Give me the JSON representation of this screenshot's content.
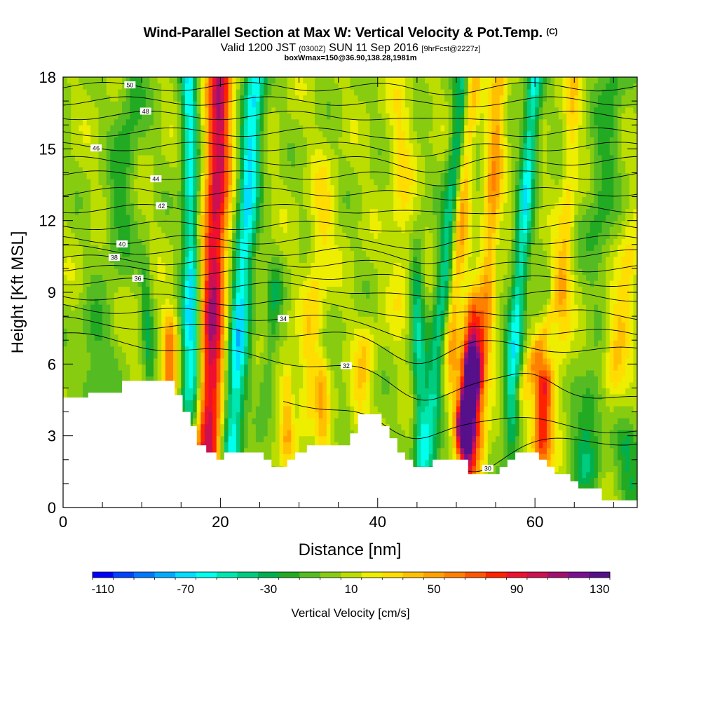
{
  "title": {
    "main": "Wind-Parallel Section at Max W: Vertical Velocity & Pot.Temp.",
    "copyright": "(C)",
    "valid_prefix": "Valid 1200 JST",
    "valid_utc": "(0300Z)",
    "valid_date": "SUN 11 Sep 2016",
    "forecast": "[9hrFcst@2227z]",
    "box_info": "boxWmax=150@36.90,138.28,1981m"
  },
  "colorbar": {
    "label": "Vertical Velocity [cm/s]",
    "tick_labels": [
      "-110",
      "-70",
      "-30",
      "10",
      "50",
      "90",
      "130"
    ],
    "colors": [
      "#0000ff",
      "#0044ff",
      "#0077ff",
      "#00aaff",
      "#00ddff",
      "#00ffee",
      "#00e6b0",
      "#00cc80",
      "#00b050",
      "#22aa22",
      "#55bb22",
      "#88cc11",
      "#bbdd00",
      "#eeee00",
      "#ffdd00",
      "#ffc000",
      "#ffa000",
      "#ff8000",
      "#ff5500",
      "#ff2200",
      "#ee1030",
      "#cc1050",
      "#a01070",
      "#7a1090",
      "#55108a"
    ]
  },
  "chart_data": {
    "type": "heatmap",
    "xlabel": "Distance [nm]",
    "ylabel": "Height [Kft MSL]",
    "xlim": [
      0,
      73
    ],
    "ylim": [
      0,
      18
    ],
    "x_ticks": [
      0,
      20,
      40,
      60
    ],
    "y_ticks": [
      0,
      3,
      6,
      9,
      12,
      15,
      18
    ],
    "vmin": -120,
    "vmax": 140,
    "fill_variable": "Vertical Velocity [cm/s]",
    "contour_variable": "Potential Temperature (C)",
    "background_w": 5,
    "terrain_kft": [
      [
        0,
        4.6
      ],
      [
        3.2,
        4.6
      ],
      [
        3.2,
        4.8
      ],
      [
        7.5,
        4.8
      ],
      [
        7.5,
        5.3
      ],
      [
        14.2,
        5.3
      ],
      [
        14.2,
        4.7
      ],
      [
        15.2,
        4.7
      ],
      [
        15.2,
        4.0
      ],
      [
        16.2,
        4.0
      ],
      [
        16.2,
        3.4
      ],
      [
        17.0,
        3.4
      ],
      [
        17.0,
        2.6
      ],
      [
        18.2,
        2.6
      ],
      [
        18.2,
        2.3
      ],
      [
        19.5,
        2.3
      ],
      [
        19.5,
        2.0
      ],
      [
        20.5,
        2.0
      ],
      [
        20.5,
        2.3
      ],
      [
        25.5,
        2.3
      ],
      [
        25.5,
        2.0
      ],
      [
        26.5,
        2.0
      ],
      [
        26.5,
        1.7
      ],
      [
        28.5,
        1.7
      ],
      [
        28.5,
        2.0
      ],
      [
        29.5,
        2.0
      ],
      [
        29.5,
        2.3
      ],
      [
        31.0,
        2.3
      ],
      [
        31.0,
        2.6
      ],
      [
        36.5,
        2.6
      ],
      [
        36.5,
        3.1
      ],
      [
        37.5,
        3.1
      ],
      [
        37.5,
        3.9
      ],
      [
        40.5,
        3.9
      ],
      [
        40.5,
        3.4
      ],
      [
        41.5,
        3.4
      ],
      [
        41.5,
        2.9
      ],
      [
        42.5,
        2.9
      ],
      [
        42.5,
        2.3
      ],
      [
        43.5,
        2.3
      ],
      [
        43.5,
        2.0
      ],
      [
        44.5,
        2.0
      ],
      [
        44.5,
        1.7
      ],
      [
        47.0,
        1.7
      ],
      [
        47.0,
        2.0
      ],
      [
        51.5,
        2.0
      ],
      [
        51.5,
        1.4
      ],
      [
        55.5,
        1.4
      ],
      [
        55.5,
        1.7
      ],
      [
        56.5,
        1.7
      ],
      [
        56.5,
        2.0
      ],
      [
        57.5,
        2.0
      ],
      [
        57.5,
        2.3
      ],
      [
        60.5,
        2.3
      ],
      [
        60.5,
        2.0
      ],
      [
        61.5,
        2.0
      ],
      [
        61.5,
        1.7
      ],
      [
        62.5,
        1.7
      ],
      [
        62.5,
        1.4
      ],
      [
        64.5,
        1.4
      ],
      [
        64.5,
        1.1
      ],
      [
        65.5,
        1.1
      ],
      [
        65.5,
        0.8
      ],
      [
        68.5,
        0.8
      ],
      [
        68.5,
        0.3
      ],
      [
        73,
        0.3
      ]
    ],
    "w_features": [
      {
        "x0": 18.5,
        "x1": 20.0,
        "y0": 2.5,
        "y1": 18,
        "w": 100,
        "rx": 1.6,
        "ry": 2.8
      },
      {
        "x0": 21.5,
        "x1": 24.5,
        "y0": 3,
        "y1": 18,
        "w": -75,
        "rx": 1.3,
        "ry": 3.0
      },
      {
        "x0": 16.5,
        "x1": 16.0,
        "y0": 6,
        "y1": 18,
        "w": -70,
        "rx": 1.0,
        "ry": 3.0
      },
      {
        "x0": 13.5,
        "x1": 13.5,
        "y0": 5.2,
        "y1": 7.0,
        "w": 55,
        "rx": 1.0,
        "ry": 1.2
      },
      {
        "x0": 15.5,
        "x1": 15.5,
        "y0": 4.8,
        "y1": 7.5,
        "w": -30,
        "rx": 0.8,
        "ry": 1.5
      },
      {
        "x0": 51.0,
        "x1": 52.0,
        "y0": 3.6,
        "y1": 5.5,
        "w": 145,
        "rx": 1.1,
        "ry": 1.3
      },
      {
        "x0": 51.5,
        "x1": 52.0,
        "y0": 2.0,
        "y1": 7.5,
        "w": 70,
        "rx": 1.1,
        "ry": 1.6
      },
      {
        "x0": 49.5,
        "x1": 52.0,
        "y0": 7.5,
        "y1": 18,
        "w": 45,
        "rx": 1.0,
        "ry": 3.0
      },
      {
        "x0": 46.5,
        "x1": 51.0,
        "y0": 3,
        "y1": 18,
        "w": -50,
        "rx": 1.1,
        "ry": 3.2
      },
      {
        "x0": 53.0,
        "x1": 55.5,
        "y0": 4,
        "y1": 18,
        "w": 45,
        "rx": 1.1,
        "ry": 3.0
      },
      {
        "x0": 57.0,
        "x1": 60.0,
        "y0": 5,
        "y1": 18,
        "w": -65,
        "rx": 1.0,
        "ry": 3.0
      },
      {
        "x0": 60.8,
        "x1": 61.2,
        "y0": 2.8,
        "y1": 5.0,
        "w": 80,
        "rx": 1.3,
        "ry": 1.3
      },
      {
        "x0": 58.5,
        "x1": 63.0,
        "y0": 5,
        "y1": 9,
        "w": 30,
        "rx": 1.0,
        "ry": 1.8
      },
      {
        "x0": 45.5,
        "x1": 45.0,
        "y0": 2.0,
        "y1": 9,
        "w": -45,
        "rx": 0.9,
        "ry": 2.2
      },
      {
        "x0": 31.0,
        "x1": 33.0,
        "y0": 5,
        "y1": 12,
        "w": 25,
        "rx": 1.5,
        "ry": 2.5
      },
      {
        "x0": 37.5,
        "x1": 38.5,
        "y0": 4.2,
        "y1": 6.5,
        "w": 25,
        "rx": 1.2,
        "ry": 1.3
      },
      {
        "x0": 28.5,
        "x1": 28.5,
        "y0": 3.0,
        "y1": 5.0,
        "w": 35,
        "rx": 0.8,
        "ry": 1.2
      },
      {
        "x0": 33.0,
        "x1": 33.0,
        "y0": 3.2,
        "y1": 5.2,
        "w": 30,
        "rx": 0.8,
        "ry": 1.0
      },
      {
        "x0": 66.5,
        "x1": 67.0,
        "y0": 1.8,
        "y1": 4.5,
        "w": -35,
        "rx": 1.8,
        "ry": 1.3
      },
      {
        "x0": 72.0,
        "x1": 72.0,
        "y0": 1.0,
        "y1": 2.5,
        "w": -30,
        "rx": 1.8,
        "ry": 1.0
      },
      {
        "x0": 7.0,
        "x1": 9.0,
        "y0": 12,
        "y1": 18,
        "w": -25,
        "rx": 1.8,
        "ry": 2.5
      },
      {
        "x0": 4.0,
        "x1": 4.0,
        "y0": 5.5,
        "y1": 7.5,
        "w": -25,
        "rx": 2.0,
        "ry": 1.2
      },
      {
        "x0": 11.0,
        "x1": 10.5,
        "y0": 5.5,
        "y1": 9.5,
        "w": -25,
        "rx": 0.7,
        "ry": 1.5
      },
      {
        "x0": 26.0,
        "x1": 27.0,
        "y0": 5.5,
        "y1": 9.0,
        "w": -25,
        "rx": 1.0,
        "ry": 1.5
      },
      {
        "x0": 43.0,
        "x1": 43.0,
        "y0": 10,
        "y1": 16,
        "w": 20,
        "rx": 1.5,
        "ry": 2.5
      },
      {
        "x0": 63.5,
        "x1": 65.0,
        "y0": 8,
        "y1": 18,
        "w": 25,
        "rx": 1.0,
        "ry": 3.0
      },
      {
        "x0": 70.0,
        "x1": 72.0,
        "y0": 6,
        "y1": 10,
        "w": 30,
        "rx": 1.5,
        "ry": 1.8
      },
      {
        "x0": 68.0,
        "x1": 70.0,
        "y0": 12,
        "y1": 18,
        "w": -25,
        "rx": 1.8,
        "ry": 3.0
      }
    ],
    "theta_contours": [
      {
        "level": 30,
        "y_left": 2.3,
        "y_right": 2.8,
        "dip_x": 52,
        "dip_amp": -1.0,
        "bump_x": 0,
        "bump_amp": 0,
        "label_x": 54,
        "x_start": 50
      },
      {
        "level": 31,
        "y_left": 5.2,
        "y_right": 3.2,
        "dip_x": 44,
        "dip_amp": -1.2,
        "bump_x": 0,
        "bump_amp": 0,
        "label_x": null,
        "x_start": 28
      },
      {
        "level": 32,
        "y_left": 7.2,
        "y_right": 4.5,
        "dip_x": 45,
        "dip_amp": -0.9,
        "bump_x": 60,
        "bump_amp": 0.5,
        "label_x": 36,
        "x_start": 0
      },
      {
        "level": 33,
        "y_left": 7.8,
        "y_right": 6.5,
        "dip_x": 45,
        "dip_amp": -0.8,
        "bump_x": 0,
        "bump_amp": 0,
        "label_x": null,
        "x_start": 0
      },
      {
        "level": 34,
        "y_left": 8.4,
        "y_right": 7.2,
        "dip_x": 46,
        "dip_amp": -0.6,
        "bump_x": 0,
        "bump_amp": 0,
        "label_x": 28,
        "x_start": 0
      },
      {
        "level": 35,
        "y_left": 8.9,
        "y_right": 8.0,
        "dip_x": 46,
        "dip_amp": -0.5,
        "bump_x": 0,
        "bump_amp": 0,
        "label_x": null,
        "x_start": 0
      },
      {
        "level": 36,
        "y_left": 9.5,
        "y_right": 8.8,
        "dip_x": 46,
        "dip_amp": -0.4,
        "bump_x": 0,
        "bump_amp": 0,
        "label_x": 9.5,
        "x_start": 0
      },
      {
        "level": 37,
        "y_left": 10.0,
        "y_right": 9.4,
        "dip_x": 47,
        "dip_amp": -0.3,
        "bump_x": 0,
        "bump_amp": 0,
        "label_x": null,
        "x_start": 0
      },
      {
        "level": 38,
        "y_left": 10.4,
        "y_right": 10.0,
        "dip_x": 47,
        "dip_amp": -0.3,
        "bump_x": 0,
        "bump_amp": 0,
        "label_x": 6.5,
        "x_start": 0
      },
      {
        "level": 39,
        "y_left": 10.8,
        "y_right": 10.6,
        "dip_x": 47,
        "dip_amp": -0.3,
        "bump_x": 0,
        "bump_amp": 0,
        "label_x": null,
        "x_start": 0
      },
      {
        "level": 40,
        "y_left": 11.2,
        "y_right": 11.2,
        "dip_x": 47,
        "dip_amp": -0.3,
        "bump_x": 0,
        "bump_amp": 0,
        "label_x": 7.5,
        "x_start": 0
      },
      {
        "level": 41,
        "y_left": 11.8,
        "y_right": 11.8,
        "dip_x": 47,
        "dip_amp": -0.3,
        "bump_x": 0,
        "bump_amp": 0,
        "label_x": null,
        "x_start": 0
      },
      {
        "level": 42,
        "y_left": 12.5,
        "y_right": 12.5,
        "dip_x": 47,
        "dip_amp": -0.3,
        "bump_x": 0,
        "bump_amp": 0,
        "label_x": 12.5,
        "x_start": 0
      },
      {
        "level": 43,
        "y_left": 13.2,
        "y_right": 13.2,
        "dip_x": 47,
        "dip_amp": -0.3,
        "bump_x": 0,
        "bump_amp": 0,
        "label_x": null,
        "x_start": 0
      },
      {
        "level": 44,
        "y_left": 13.9,
        "y_right": 13.9,
        "dip_x": 47,
        "dip_amp": -0.3,
        "bump_x": 0,
        "bump_amp": 0,
        "label_x": 11.8,
        "x_start": 0
      },
      {
        "level": 45,
        "y_left": 14.5,
        "y_right": 14.5,
        "dip_x": 47,
        "dip_amp": -0.3,
        "bump_x": 0,
        "bump_amp": 0,
        "label_x": null,
        "x_start": 0
      },
      {
        "level": 46,
        "y_left": 15.1,
        "y_right": 15.1,
        "dip_x": 47,
        "dip_amp": -0.3,
        "bump_x": 0,
        "bump_amp": 0,
        "label_x": 4.2,
        "x_start": 0
      },
      {
        "level": 47,
        "y_left": 15.7,
        "y_right": 15.7,
        "dip_x": 47,
        "dip_amp": -0.3,
        "bump_x": 0,
        "bump_amp": 0,
        "label_x": null,
        "x_start": 0
      },
      {
        "level": 48,
        "y_left": 16.4,
        "y_right": 16.4,
        "dip_x": 47,
        "dip_amp": -0.3,
        "bump_x": 0,
        "bump_amp": 0,
        "label_x": 10.5,
        "x_start": 0
      },
      {
        "level": 49,
        "y_left": 17.0,
        "y_right": 17.0,
        "dip_x": 47,
        "dip_amp": -0.2,
        "bump_x": 0,
        "bump_amp": 0,
        "label_x": null,
        "x_start": 0
      },
      {
        "level": 50,
        "y_left": 17.6,
        "y_right": 17.6,
        "dip_x": 47,
        "dip_amp": -0.2,
        "bump_x": 0,
        "bump_amp": 0,
        "label_x": 8.5,
        "x_start": 0
      }
    ]
  }
}
